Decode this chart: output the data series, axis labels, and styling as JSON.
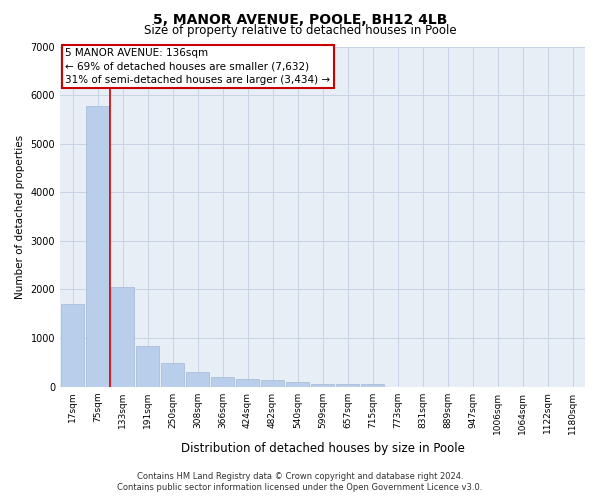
{
  "title": "5, MANOR AVENUE, POOLE, BH12 4LB",
  "subtitle": "Size of property relative to detached houses in Poole",
  "xlabel": "Distribution of detached houses by size in Poole",
  "ylabel": "Number of detached properties",
  "annotation_line1": "5 MANOR AVENUE: 136sqm",
  "annotation_line2": "← 69% of detached houses are smaller (7,632)",
  "annotation_line3": "31% of semi-detached houses are larger (3,434) →",
  "footer_line1": "Contains HM Land Registry data © Crown copyright and database right 2024.",
  "footer_line2": "Contains public sector information licensed under the Open Government Licence v3.0.",
  "bin_labels": [
    "17sqm",
    "75sqm",
    "133sqm",
    "191sqm",
    "250sqm",
    "308sqm",
    "366sqm",
    "424sqm",
    "482sqm",
    "540sqm",
    "599sqm",
    "657sqm",
    "715sqm",
    "773sqm",
    "831sqm",
    "889sqm",
    "947sqm",
    "1006sqm",
    "1064sqm",
    "1122sqm",
    "1180sqm"
  ],
  "bar_values": [
    1700,
    5780,
    2060,
    830,
    490,
    310,
    200,
    150,
    140,
    100,
    60,
    55,
    55,
    0,
    0,
    0,
    0,
    0,
    0,
    0,
    0
  ],
  "property_bin_index": 2,
  "bar_color": "#b8ceea",
  "highlight_line_color": "#cc0000",
  "annotation_box_color": "#cc0000",
  "grid_color": "#c8d4e4",
  "background_color": "#e8eef6",
  "ylim": [
    0,
    7000
  ],
  "yticks": [
    0,
    1000,
    2000,
    3000,
    4000,
    5000,
    6000,
    7000
  ],
  "title_fontsize": 10,
  "subtitle_fontsize": 8.5,
  "ylabel_fontsize": 7.5,
  "xlabel_fontsize": 8.5,
  "tick_fontsize": 6.5,
  "annotation_fontsize": 7.5,
  "footer_fontsize": 6
}
